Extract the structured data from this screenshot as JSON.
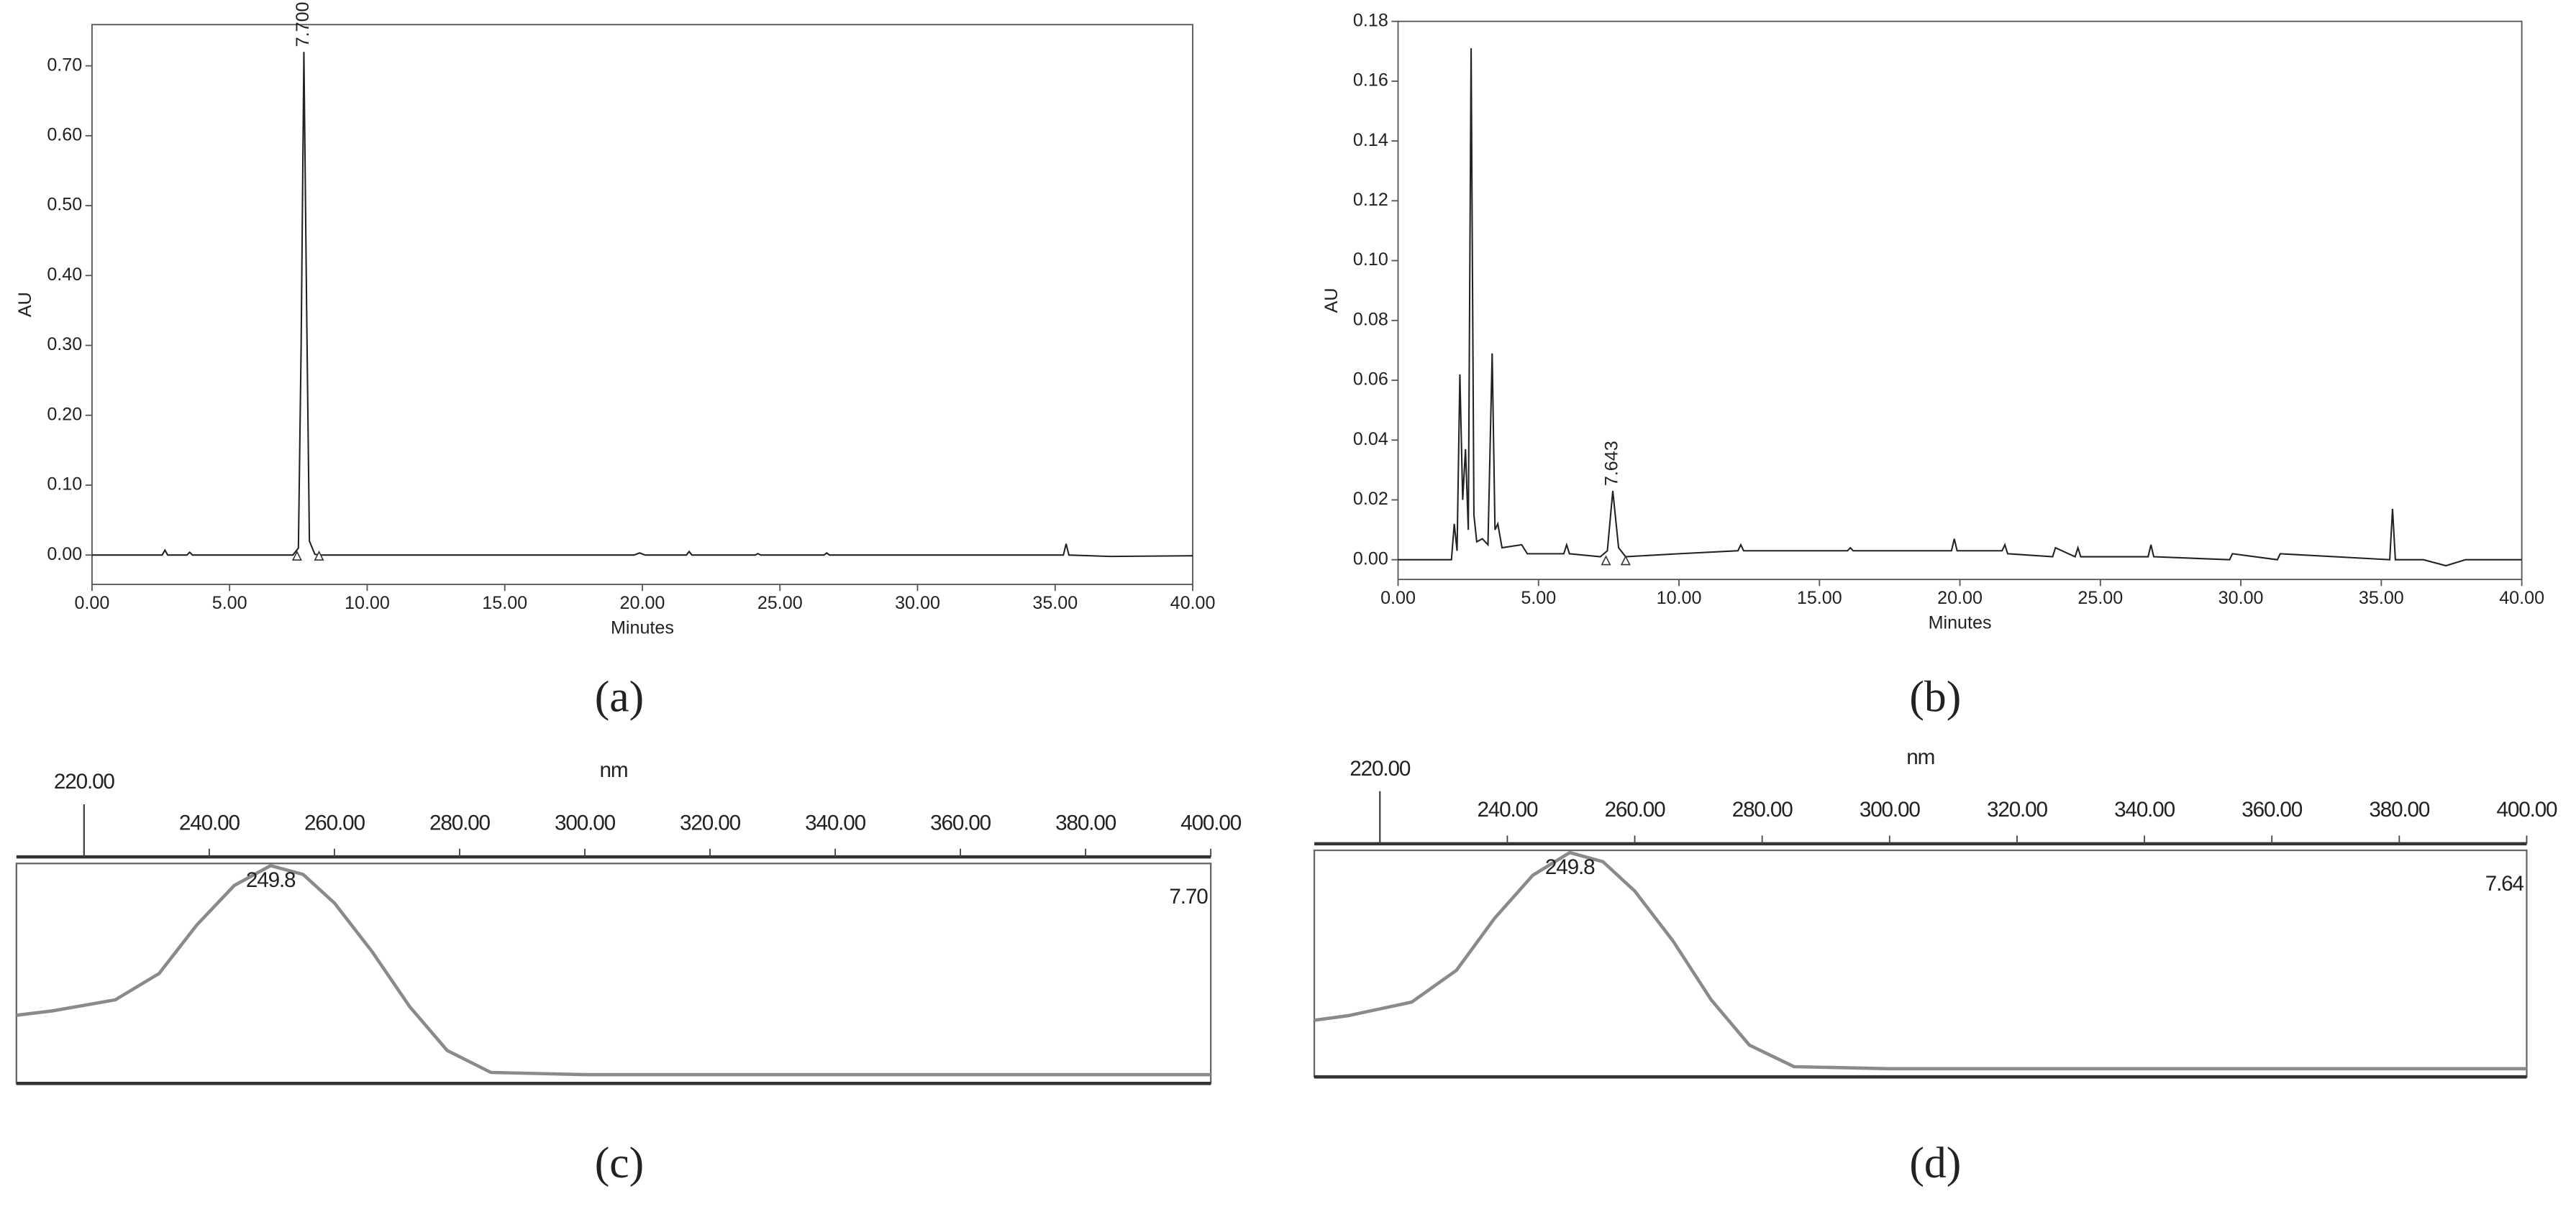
{
  "chart_data": [
    {
      "type": "line",
      "label": "(a)",
      "y_label": "AU",
      "x_label": "Minutes",
      "color": "#222222",
      "xlim": [
        0,
        40
      ],
      "ylim": [
        -0.042,
        0.759
      ],
      "xticks": [
        {
          "value": 0,
          "label": "0.00"
        },
        {
          "value": 5,
          "label": "5.00"
        },
        {
          "value": 10,
          "label": "10.00"
        },
        {
          "value": 15,
          "label": "15.00"
        },
        {
          "value": 20,
          "label": "20.00"
        },
        {
          "value": 25,
          "label": "25.00"
        },
        {
          "value": 30,
          "label": "30.00"
        },
        {
          "value": 35,
          "label": "35.00"
        },
        {
          "value": 40,
          "label": "40.00"
        }
      ],
      "yticks": [
        {
          "value": 0,
          "label": "0.00"
        },
        {
          "value": 0.1,
          "label": "0.10"
        },
        {
          "value": 0.2,
          "label": "0.20"
        },
        {
          "value": 0.3,
          "label": "0.30"
        },
        {
          "value": 0.4,
          "label": "0.40"
        },
        {
          "value": 0.5,
          "label": "0.50"
        },
        {
          "value": 0.6,
          "label": "0.60"
        },
        {
          "value": 0.7,
          "label": "0.70"
        }
      ],
      "x": [
        0,
        2.55,
        2.65,
        2.75,
        3.45,
        3.55,
        3.65,
        7.3,
        7.5,
        7.6,
        7.7,
        7.8,
        7.9,
        8.1,
        8.3,
        19.7,
        19.9,
        20.1,
        21.6,
        21.7,
        21.8,
        24.1,
        24.2,
        24.3,
        26.6,
        26.7,
        26.8,
        35.3,
        35.4,
        35.5,
        37,
        40
      ],
      "values": [
        0,
        0,
        0.007,
        0,
        0,
        0.004,
        0,
        0,
        0.01,
        0.3,
        0.72,
        0.35,
        0.02,
        0.001,
        0,
        0,
        0.003,
        0,
        0,
        0.005,
        0,
        0,
        0.002,
        0,
        0,
        0.003,
        0,
        0,
        0.016,
        0,
        -0.002,
        -0.001
      ],
      "baseline_marks": [
        7.45,
        8.25
      ],
      "peak_annotations": [
        {
          "x": 7.7,
          "text": "7.700"
        }
      ]
    },
    {
      "type": "line",
      "label": "(b)",
      "y_label": "AU",
      "x_label": "Minutes",
      "color": "#222222",
      "xlim": [
        0,
        40
      ],
      "ylim": [
        -0.0066,
        0.18
      ],
      "xticks": [
        {
          "value": 0,
          "label": "0.00"
        },
        {
          "value": 5,
          "label": "5.00"
        },
        {
          "value": 10,
          "label": "10.00"
        },
        {
          "value": 15,
          "label": "15.00"
        },
        {
          "value": 20,
          "label": "20.00"
        },
        {
          "value": 25,
          "label": "25.00"
        },
        {
          "value": 30,
          "label": "30.00"
        },
        {
          "value": 35,
          "label": "35.00"
        },
        {
          "value": 40,
          "label": "40.00"
        }
      ],
      "yticks": [
        {
          "value": 0,
          "label": "0.00"
        },
        {
          "value": 0.02,
          "label": "0.02"
        },
        {
          "value": 0.04,
          "label": "0.04"
        },
        {
          "value": 0.06,
          "label": "0.06"
        },
        {
          "value": 0.08,
          "label": "0.08"
        },
        {
          "value": 0.1,
          "label": "0.10"
        },
        {
          "value": 0.12,
          "label": "0.12"
        },
        {
          "value": 0.14,
          "label": "0.14"
        },
        {
          "value": 0.16,
          "label": "0.16"
        },
        {
          "value": 0.18,
          "label": "0.18"
        }
      ],
      "x": [
        0,
        1.9,
        2.0,
        2.1,
        2.2,
        2.3,
        2.4,
        2.5,
        2.6,
        2.7,
        2.8,
        3.0,
        3.2,
        3.35,
        3.45,
        3.55,
        3.7,
        4.4,
        4.6,
        5.9,
        6.0,
        6.1,
        7.2,
        7.45,
        7.643,
        7.85,
        8.1,
        10,
        12.1,
        12.2,
        12.3,
        16,
        16.1,
        16.2,
        19.7,
        19.8,
        19.9,
        21.5,
        21.6,
        21.7,
        23.3,
        23.4,
        24.1,
        24.2,
        24.3,
        26.7,
        26.8,
        26.9,
        29.6,
        29.7,
        31.3,
        31.4,
        35.3,
        35.4,
        35.5,
        36.5,
        37.3,
        38,
        40
      ],
      "values": [
        0,
        0,
        0.012,
        0.003,
        0.062,
        0.02,
        0.037,
        0.01,
        0.171,
        0.015,
        0.006,
        0.007,
        0.005,
        0.069,
        0.01,
        0.012,
        0.004,
        0.005,
        0.002,
        0.002,
        0.005,
        0.002,
        0.001,
        0.003,
        0.023,
        0.004,
        0.001,
        0.002,
        0.003,
        0.005,
        0.003,
        0.003,
        0.004,
        0.003,
        0.003,
        0.007,
        0.003,
        0.003,
        0.005,
        0.002,
        0.001,
        0.004,
        0.001,
        0.004,
        0.001,
        0.001,
        0.005,
        0.001,
        0,
        0.002,
        0,
        0.002,
        0,
        0.017,
        0,
        0,
        -0.002,
        0,
        0
      ],
      "baseline_marks": [
        7.4,
        8.1
      ],
      "peak_annotations": [
        {
          "x": 7.643,
          "text": "7.643"
        }
      ]
    },
    {
      "type": "spectrum",
      "label": "(c)",
      "x_label": "nm",
      "color": "#8a8a8a",
      "xaxis_position": "top",
      "xlim": [
        209.2,
        400
      ],
      "ylim": [
        0,
        1
      ],
      "xticks": [
        {
          "value": 220,
          "label": "220.00"
        },
        {
          "value": 240,
          "label": "240.00"
        },
        {
          "value": 260,
          "label": "260.00"
        },
        {
          "value": 280,
          "label": "280.00"
        },
        {
          "value": 300,
          "label": "300.00"
        },
        {
          "value": 320,
          "label": "320.00"
        },
        {
          "value": 340,
          "label": "340.00"
        },
        {
          "value": 360,
          "label": "360.00"
        },
        {
          "value": 380,
          "label": "380.00"
        },
        {
          "value": 400,
          "label": "400.00"
        }
      ],
      "x": [
        209.2,
        215,
        225,
        232,
        238,
        244,
        249.8,
        255,
        260,
        266,
        272,
        278,
        285,
        300,
        400
      ],
      "values": [
        0.31,
        0.33,
        0.38,
        0.5,
        0.72,
        0.9,
        0.99,
        0.95,
        0.82,
        0.6,
        0.35,
        0.15,
        0.05,
        0.04,
        0.04
      ],
      "peak_label": "249.8",
      "corner_label": "7.70"
    },
    {
      "type": "spectrum",
      "label": "(d)",
      "x_label": "nm",
      "color": "#8a8a8a",
      "xaxis_position": "top",
      "xlim": [
        209.7,
        400
      ],
      "ylim": [
        0,
        1
      ],
      "xticks": [
        {
          "value": 220,
          "label": "220.00"
        },
        {
          "value": 240,
          "label": "240.00"
        },
        {
          "value": 260,
          "label": "260.00"
        },
        {
          "value": 280,
          "label": "280.00"
        },
        {
          "value": 300,
          "label": "300.00"
        },
        {
          "value": 320,
          "label": "320.00"
        },
        {
          "value": 340,
          "label": "340.00"
        },
        {
          "value": 360,
          "label": "360.00"
        },
        {
          "value": 380,
          "label": "380.00"
        },
        {
          "value": 400,
          "label": "400.00"
        }
      ],
      "x": [
        209.7,
        215,
        225,
        232,
        238,
        244,
        249.8,
        255,
        260,
        266,
        272,
        278,
        285,
        300,
        400
      ],
      "values": [
        0.25,
        0.27,
        0.33,
        0.47,
        0.7,
        0.89,
        0.99,
        0.95,
        0.82,
        0.6,
        0.34,
        0.14,
        0.045,
        0.036,
        0.036
      ],
      "peak_label": "249.8",
      "corner_label": "7.64"
    }
  ]
}
